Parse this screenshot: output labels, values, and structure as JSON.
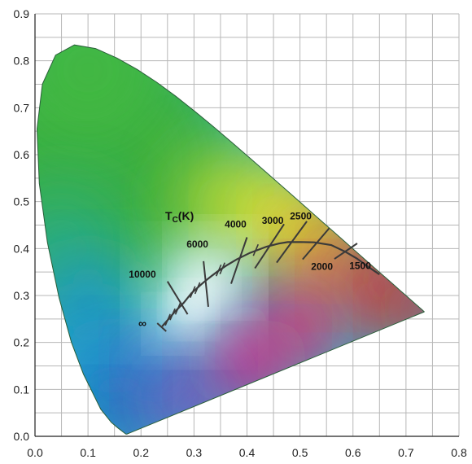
{
  "chart_data": {
    "type": "chromaticity",
    "xlim": [
      0,
      0.8
    ],
    "ylim": [
      0,
      0.9
    ],
    "x_ticks": [
      "0.0",
      "0.1",
      "0.2",
      "0.3",
      "0.4",
      "0.5",
      "0.6",
      "0.7",
      "0.8"
    ],
    "y_ticks": [
      "0.0",
      "0.1",
      "0.2",
      "0.3",
      "0.4",
      "0.5",
      "0.6",
      "0.7",
      "0.8",
      "0.9"
    ],
    "grid": true,
    "planckian_label_main": "T",
    "planckian_label_sub": "C",
    "planckian_label_tail": "(K)",
    "infinity_label": "∞",
    "spectral_locus": [
      [
        0.1741,
        0.005
      ],
      [
        0.1738,
        0.0049
      ],
      [
        0.1736,
        0.0049
      ],
      [
        0.1733,
        0.0048
      ],
      [
        0.1726,
        0.0048
      ],
      [
        0.1714,
        0.0051
      ],
      [
        0.1689,
        0.0069
      ],
      [
        0.1644,
        0.0109
      ],
      [
        0.1566,
        0.0177
      ],
      [
        0.144,
        0.0297
      ],
      [
        0.1241,
        0.0578
      ],
      [
        0.0913,
        0.1327
      ],
      [
        0.0687,
        0.2007
      ],
      [
        0.0454,
        0.295
      ],
      [
        0.0235,
        0.4127
      ],
      [
        0.0082,
        0.5384
      ],
      [
        0.0039,
        0.6548
      ],
      [
        0.0139,
        0.7502
      ],
      [
        0.0389,
        0.812
      ],
      [
        0.0743,
        0.8338
      ],
      [
        0.1142,
        0.8262
      ],
      [
        0.1547,
        0.8059
      ],
      [
        0.1929,
        0.7816
      ],
      [
        0.2296,
        0.7543
      ],
      [
        0.2658,
        0.7243
      ],
      [
        0.3016,
        0.6923
      ],
      [
        0.3373,
        0.6589
      ],
      [
        0.3731,
        0.6245
      ],
      [
        0.4087,
        0.5896
      ],
      [
        0.4441,
        0.5547
      ],
      [
        0.4788,
        0.5202
      ],
      [
        0.5125,
        0.4866
      ],
      [
        0.5448,
        0.4544
      ],
      [
        0.5752,
        0.4242
      ],
      [
        0.6029,
        0.3965
      ],
      [
        0.627,
        0.3725
      ],
      [
        0.6482,
        0.3514
      ],
      [
        0.6658,
        0.334
      ],
      [
        0.6801,
        0.3197
      ],
      [
        0.6915,
        0.3083
      ],
      [
        0.7006,
        0.2993
      ],
      [
        0.7079,
        0.292
      ],
      [
        0.714,
        0.2859
      ],
      [
        0.719,
        0.2809
      ],
      [
        0.723,
        0.277
      ],
      [
        0.726,
        0.274
      ],
      [
        0.7283,
        0.2717
      ],
      [
        0.73,
        0.27
      ],
      [
        0.7311,
        0.2689
      ],
      [
        0.732,
        0.268
      ],
      [
        0.7327,
        0.2673
      ],
      [
        0.7334,
        0.2666
      ],
      [
        0.734,
        0.266
      ],
      [
        0.7344,
        0.2656
      ],
      [
        0.7346,
        0.2654
      ],
      [
        0.7347,
        0.2653
      ]
    ],
    "planckian_locus": [
      [
        0.2399,
        0.2341
      ],
      [
        0.2521,
        0.2501
      ],
      [
        0.2637,
        0.265
      ],
      [
        0.2807,
        0.2845
      ],
      [
        0.2952,
        0.3048
      ],
      [
        0.3135,
        0.3236
      ],
      [
        0.3221,
        0.3318
      ],
      [
        0.3324,
        0.341
      ],
      [
        0.3451,
        0.3516
      ],
      [
        0.3608,
        0.3636
      ],
      [
        0.3805,
        0.3768
      ],
      [
        0.4053,
        0.3907
      ],
      [
        0.4369,
        0.4041
      ],
      [
        0.4599,
        0.4106
      ],
      [
        0.477,
        0.4137
      ],
      [
        0.5008,
        0.4139
      ],
      [
        0.5267,
        0.4133
      ],
      [
        0.5589,
        0.4075
      ],
      [
        0.5857,
        0.3931
      ],
      [
        0.607,
        0.379
      ],
      [
        0.63,
        0.36
      ],
      [
        0.65,
        0.345
      ]
    ],
    "isotherms": [
      {
        "label": "10000",
        "at": [
          0.2807,
          0.2845
        ],
        "p1": [
          0.25,
          0.33
        ],
        "p2": [
          0.288,
          0.26
        ],
        "label_at": [
          0.177,
          0.338
        ]
      },
      {
        "label": "6000",
        "at": [
          0.3221,
          0.3318
        ],
        "p1": [
          0.318,
          0.373
        ],
        "p2": [
          0.327,
          0.276
        ],
        "label_at": [
          0.286,
          0.402
        ]
      },
      {
        "label": "4000",
        "at": [
          0.3805,
          0.3768
        ],
        "p1": [
          0.4,
          0.424
        ],
        "p2": [
          0.37,
          0.325
        ],
        "label_at": [
          0.358,
          0.445
        ]
      },
      {
        "label": "3000",
        "at": [
          0.4369,
          0.4041
        ],
        "p1": [
          0.47,
          0.452
        ],
        "p2": [
          0.415,
          0.358
        ],
        "label_at": [
          0.428,
          0.453
        ]
      },
      {
        "label": "2500",
        "at": [
          0.477,
          0.4137
        ],
        "p1": [
          0.513,
          0.458
        ],
        "p2": [
          0.456,
          0.37
        ],
        "label_at": [
          0.481,
          0.462
        ]
      },
      {
        "label": "2000",
        "at": [
          0.5267,
          0.4133
        ],
        "p1": [
          0.555,
          0.443
        ],
        "p2": [
          0.505,
          0.377
        ],
        "label_at": [
          0.521,
          0.355
        ]
      },
      {
        "label": "1500",
        "at": [
          0.5857,
          0.3931
        ],
        "p1": [
          0.608,
          0.411
        ],
        "p2": [
          0.565,
          0.378
        ],
        "label_at": [
          0.593,
          0.356
        ]
      }
    ],
    "minor_ticks_at": [
      [
        0.249,
        0.2465
      ],
      [
        0.258,
        0.258
      ],
      [
        0.268,
        0.27
      ],
      [
        0.296,
        0.3058
      ],
      [
        0.305,
        0.314
      ],
      [
        0.352,
        0.356
      ],
      [
        0.345,
        0.3516
      ],
      [
        0.415,
        0.395
      ]
    ],
    "colors": {
      "white": "#ffffff",
      "green": "#3aae3a",
      "yellow": "#f5e62a",
      "orange": "#f28a22",
      "red": "#e0322b",
      "magenta": "#e8177a",
      "purple": "#8c3bb8",
      "blue": "#1e76c9",
      "cyan": "#34b3cc",
      "grid": "#b7b7b7",
      "locus": "#3a3a3a",
      "axis": "#222222"
    }
  }
}
